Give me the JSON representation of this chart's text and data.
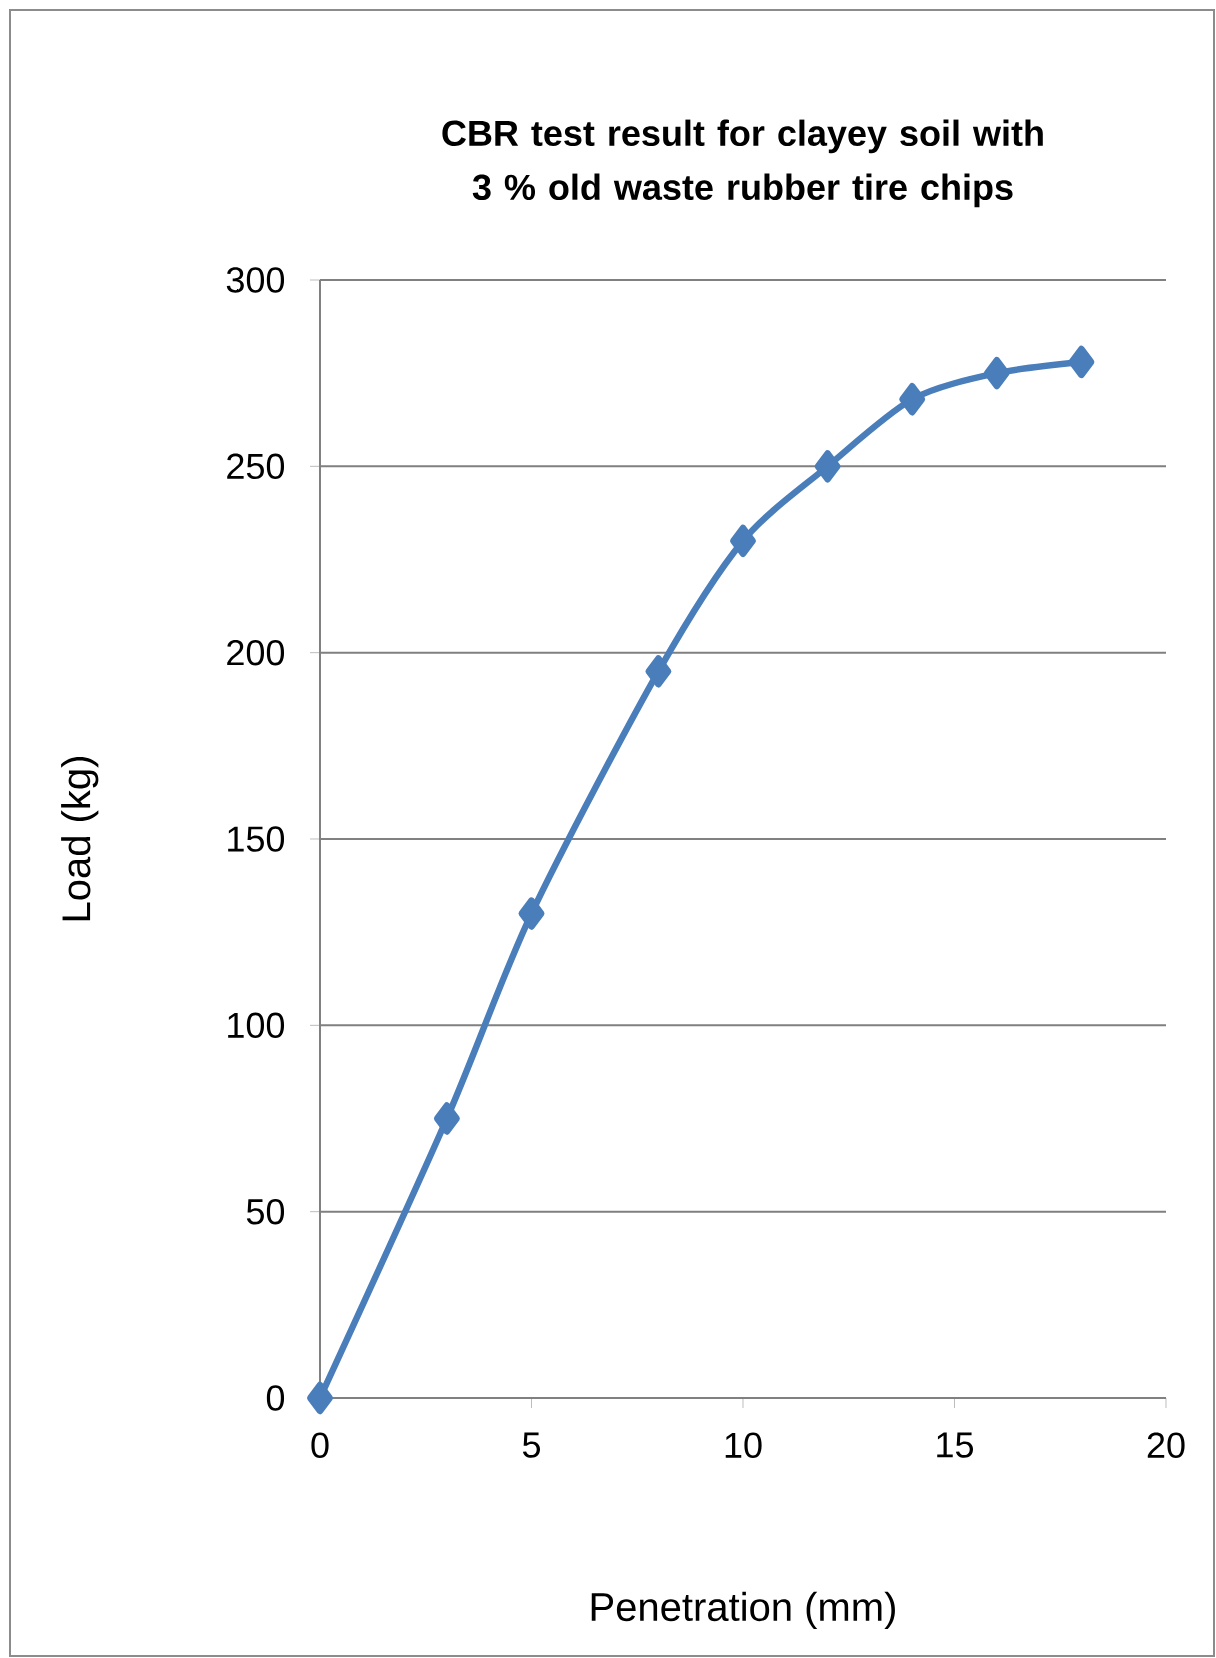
{
  "chart_data": {
    "type": "line",
    "title": "CBR test result for clayey soil with 3 % old waste rubber tire chips",
    "xlabel": "Penetration (mm)",
    "ylabel": "Load (kg)",
    "x": [
      0,
      3,
      5,
      8,
      10,
      12,
      14,
      16,
      18
    ],
    "series": [
      {
        "color": "#4a7ebb",
        "values": [
          0,
          75,
          130,
          195,
          230,
          250,
          268,
          275,
          278
        ]
      }
    ],
    "xlim": [
      0,
      20
    ],
    "xticks": [
      0,
      5,
      10,
      15,
      20
    ],
    "ylim": [
      0,
      300
    ],
    "yticks": [
      0,
      50,
      100,
      150,
      200,
      250,
      300
    ],
    "grid": "y",
    "marker": "diamond",
    "line_style": "solid"
  }
}
